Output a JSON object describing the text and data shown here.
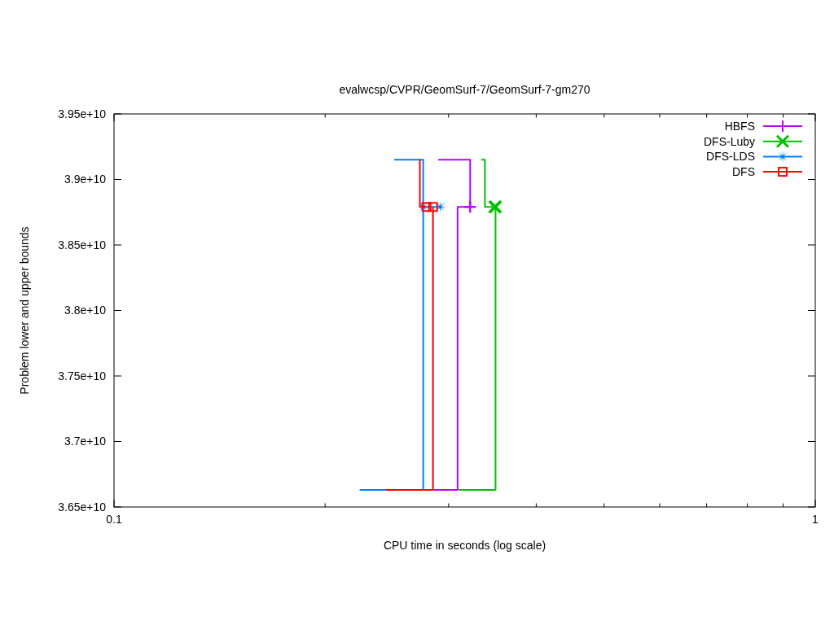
{
  "chart_data": {
    "type": "step",
    "title": "evalwcsp/CVPR/GeomSurf-7/GeomSurf-7-gm270",
    "xlabel": "CPU time in seconds (log scale)",
    "ylabel": "Problem lower and upper bounds",
    "log": "x",
    "xlim": [
      0.1,
      1
    ],
    "xticks": [
      0.1,
      {
        "value": 0.2,
        "label": null
      },
      {
        "value": 0.3,
        "label": null
      },
      {
        "value": 0.4,
        "label": null
      },
      {
        "value": 0.5,
        "label": null
      },
      {
        "value": 0.6,
        "label": null
      },
      {
        "value": 0.7,
        "label": null
      },
      {
        "value": 0.8,
        "label": null
      },
      {
        "value": 0.9,
        "label": null
      },
      1
    ],
    "ylim": [
      36500000000,
      39500000000
    ],
    "yticks": [
      {
        "value": 36500000000,
        "label": "3.65e+10"
      },
      {
        "value": 37000000000,
        "label": "3.7e+10"
      },
      {
        "value": 37500000000,
        "label": "3.75e+10"
      },
      {
        "value": 38000000000,
        "label": "3.8e+10"
      },
      {
        "value": 38500000000,
        "label": "3.85e+10"
      },
      {
        "value": 39000000000,
        "label": "3.9e+10"
      },
      {
        "value": 39500000000,
        "label": "3.95e+10"
      }
    ],
    "legend": "top right",
    "series": [
      {
        "name": "HBFS",
        "color": "#c000ff",
        "x": [
          0.29,
          0.322,
          null,
          0.285,
          0.309,
          0.322
        ],
        "values": [
          39150000000,
          38790000000,
          null,
          36630000000,
          38790000000,
          38790000000
        ]
      },
      {
        "type": "scatter",
        "color": "#c000ff",
        "marker": "cross",
        "x": [
          0.322,
          0.322
        ],
        "values": [
          38790000000,
          38790000000
        ]
      },
      {
        "name": "DFS-Luby",
        "color": "#00c000",
        "x": [
          0.334,
          0.338,
          0.349,
          null,
          0.31,
          0.35
        ],
        "values": [
          39150000000,
          38790000000,
          38790000000,
          null,
          36630000000,
          38790000000
        ]
      },
      {
        "type": "scatter",
        "color": "#00c000",
        "marker": "x",
        "x": [
          0.349,
          0.35
        ],
        "values": [
          38790000000,
          38790000000
        ]
      },
      {
        "name": "DFS-LDS",
        "color": "#0080ff",
        "x": [
          0.251,
          0.276,
          null,
          0.224,
          0.276,
          0.292
        ],
        "values": [
          39150000000,
          38790000000,
          null,
          36630000000,
          38790000000,
          38790000000
        ]
      },
      {
        "type": "scatter",
        "color": "#0080ff",
        "marker": "star",
        "x": [
          0.276,
          0.292
        ],
        "values": [
          38790000000,
          38790000000
        ]
      },
      {
        "name": "DFS",
        "color": "#ff0000",
        "x": [
          0.273,
          0.273,
          0.279,
          null,
          0.244,
          0.285
        ],
        "values": [
          39150000000,
          38790000000,
          38790000000,
          null,
          36630000000,
          38790000000
        ]
      },
      {
        "type": "scatter",
        "color": "#ff0000",
        "marker": "square",
        "x": [
          0.279,
          0.285
        ],
        "values": [
          38790000000,
          38790000000
        ]
      }
    ]
  }
}
